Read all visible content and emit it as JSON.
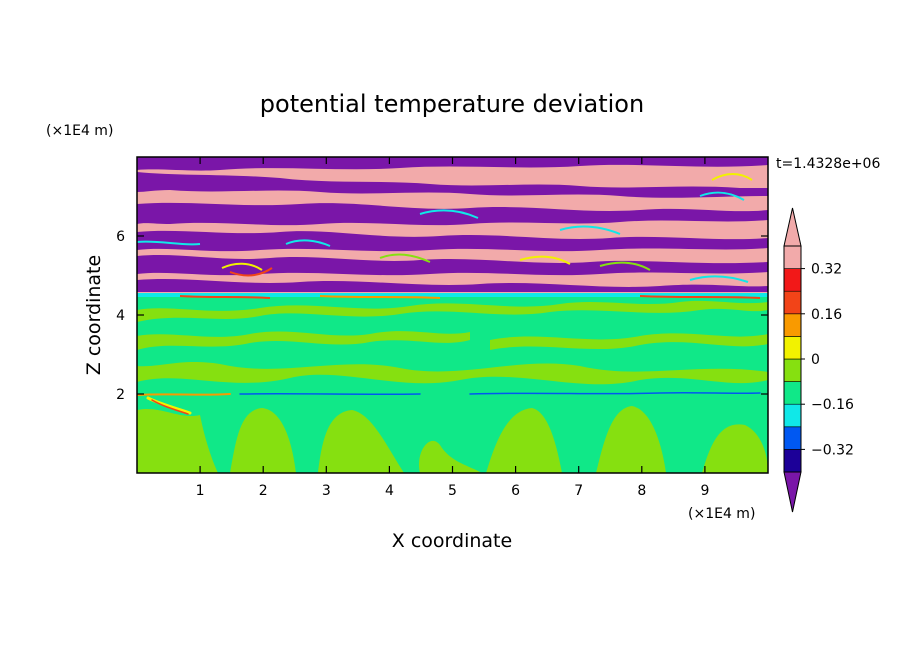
{
  "chart_data": {
    "type": "heatmap",
    "title": "potential temperature deviation",
    "xlabel": "X coordinate",
    "ylabel": "Z coordinate",
    "x_unit": "(×1E4 m)",
    "y_unit": "(×1E4 m)",
    "time_label": "t=1.4328e+06",
    "xlim": [
      0,
      10
    ],
    "ylim": [
      0,
      8
    ],
    "x_ticks": [
      "1",
      "2",
      "3",
      "4",
      "5",
      "6",
      "7",
      "8",
      "9"
    ],
    "y_ticks": [
      "2",
      "4",
      "6"
    ],
    "colorbar": {
      "levels": [
        -0.4,
        -0.32,
        -0.24,
        -0.16,
        -0.08,
        0,
        0.08,
        0.16,
        0.24,
        0.32,
        0.4
      ],
      "tick_labels": [
        "0.32",
        "0.16",
        "0",
        "−0.16",
        "−0.32"
      ],
      "tick_values": [
        0.32,
        0.16,
        0,
        -0.16,
        -0.32
      ],
      "colors": [
        "#7a16a8",
        "#1c0098",
        "#0058f2",
        "#10e8e8",
        "#10e888",
        "#86e010",
        "#f2f200",
        "#f99a00",
        "#f24418",
        "#f21818",
        "#f2aaaa"
      ],
      "extend": "both"
    }
  }
}
